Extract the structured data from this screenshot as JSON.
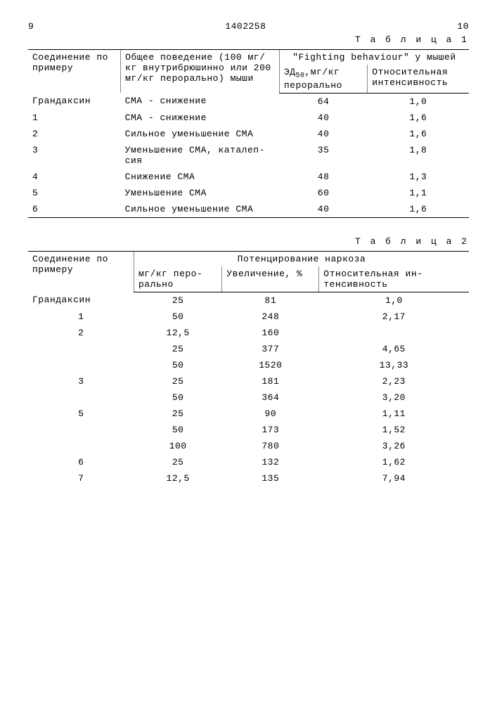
{
  "header": {
    "left_page": "9",
    "doc_number": "1402258",
    "right_page": "10"
  },
  "table1": {
    "caption": "Т а б л и ц а 1",
    "columns": {
      "c1": "Соединение по примеру",
      "c2": "Общее поведение (100 мг/кг внутри­брюшинно или 200 мг/кг перорально) мыши",
      "c3_group": "\"Fighting behaviour\" у мышей",
      "c3a_pre": "ЭД",
      "c3a_sub": "50",
      "c3a_post": ",мг/кг перорально",
      "c3b": "Относитель­ная интенсив­ность"
    },
    "rows": [
      {
        "c1": "Грандаксин",
        "c2": "СМА - снижение",
        "c3a": "64",
        "c3b": "1,0"
      },
      {
        "c1": "1",
        "c2": "СМА - снижение",
        "c3a": "40",
        "c3b": "1,6"
      },
      {
        "c1": "2",
        "c2": "Сильное уменьшение СМА",
        "c3a": "40",
        "c3b": "1,6"
      },
      {
        "c1": "3",
        "c2": "Уменьшение СМА, каталеп­сия",
        "c3a": "35",
        "c3b": "1,8"
      },
      {
        "c1": "4",
        "c2": "Снижение СМА",
        "c3a": "48",
        "c3b": "1,3"
      },
      {
        "c1": "5",
        "c2": "Уменьшение СМА",
        "c3a": "60",
        "c3b": "1,1"
      },
      {
        "c1": "6",
        "c2": "Сильное уменьшение СМА",
        "c3a": "40",
        "c3b": "1,6"
      }
    ]
  },
  "table2": {
    "caption": "Т а б л и ц а 2",
    "columns": {
      "c1": "Соединение по примеру",
      "c_group": "Потенцирование  наркоза",
      "c2": "мг/кг перо­рально",
      "c3": "Увеличение, %",
      "c4": "Относительная ин­тенсивность"
    },
    "rows": [
      {
        "c1": "Грандаксин",
        "c2": "25",
        "c3": "81",
        "c4": "1,0"
      },
      {
        "c1": "1",
        "c2": "50",
        "c3": "248",
        "c4": "2,17"
      },
      {
        "c1": "2",
        "c2": "12,5",
        "c3": "160",
        "c4": ""
      },
      {
        "c1": "",
        "c2": "25",
        "c3": "377",
        "c4": "4,65"
      },
      {
        "c1": "",
        "c2": "50",
        "c3": "1520",
        "c4": "13,33"
      },
      {
        "c1": "3",
        "c2": "25",
        "c3": "181",
        "c4": "2,23"
      },
      {
        "c1": "",
        "c2": "50",
        "c3": "364",
        "c4": "3,20"
      },
      {
        "c1": "5",
        "c2": "25",
        "c3": "90",
        "c4": "1,11"
      },
      {
        "c1": "",
        "c2": "50",
        "c3": "173",
        "c4": "1,52"
      },
      {
        "c1": "",
        "c2": "100",
        "c3": "780",
        "c4": "3,26"
      },
      {
        "c1": "6",
        "c2": "25",
        "c3": "132",
        "c4": "1,62"
      },
      {
        "c1": "7",
        "c2": "12,5",
        "c3": "135",
        "c4": "7,94"
      }
    ]
  }
}
